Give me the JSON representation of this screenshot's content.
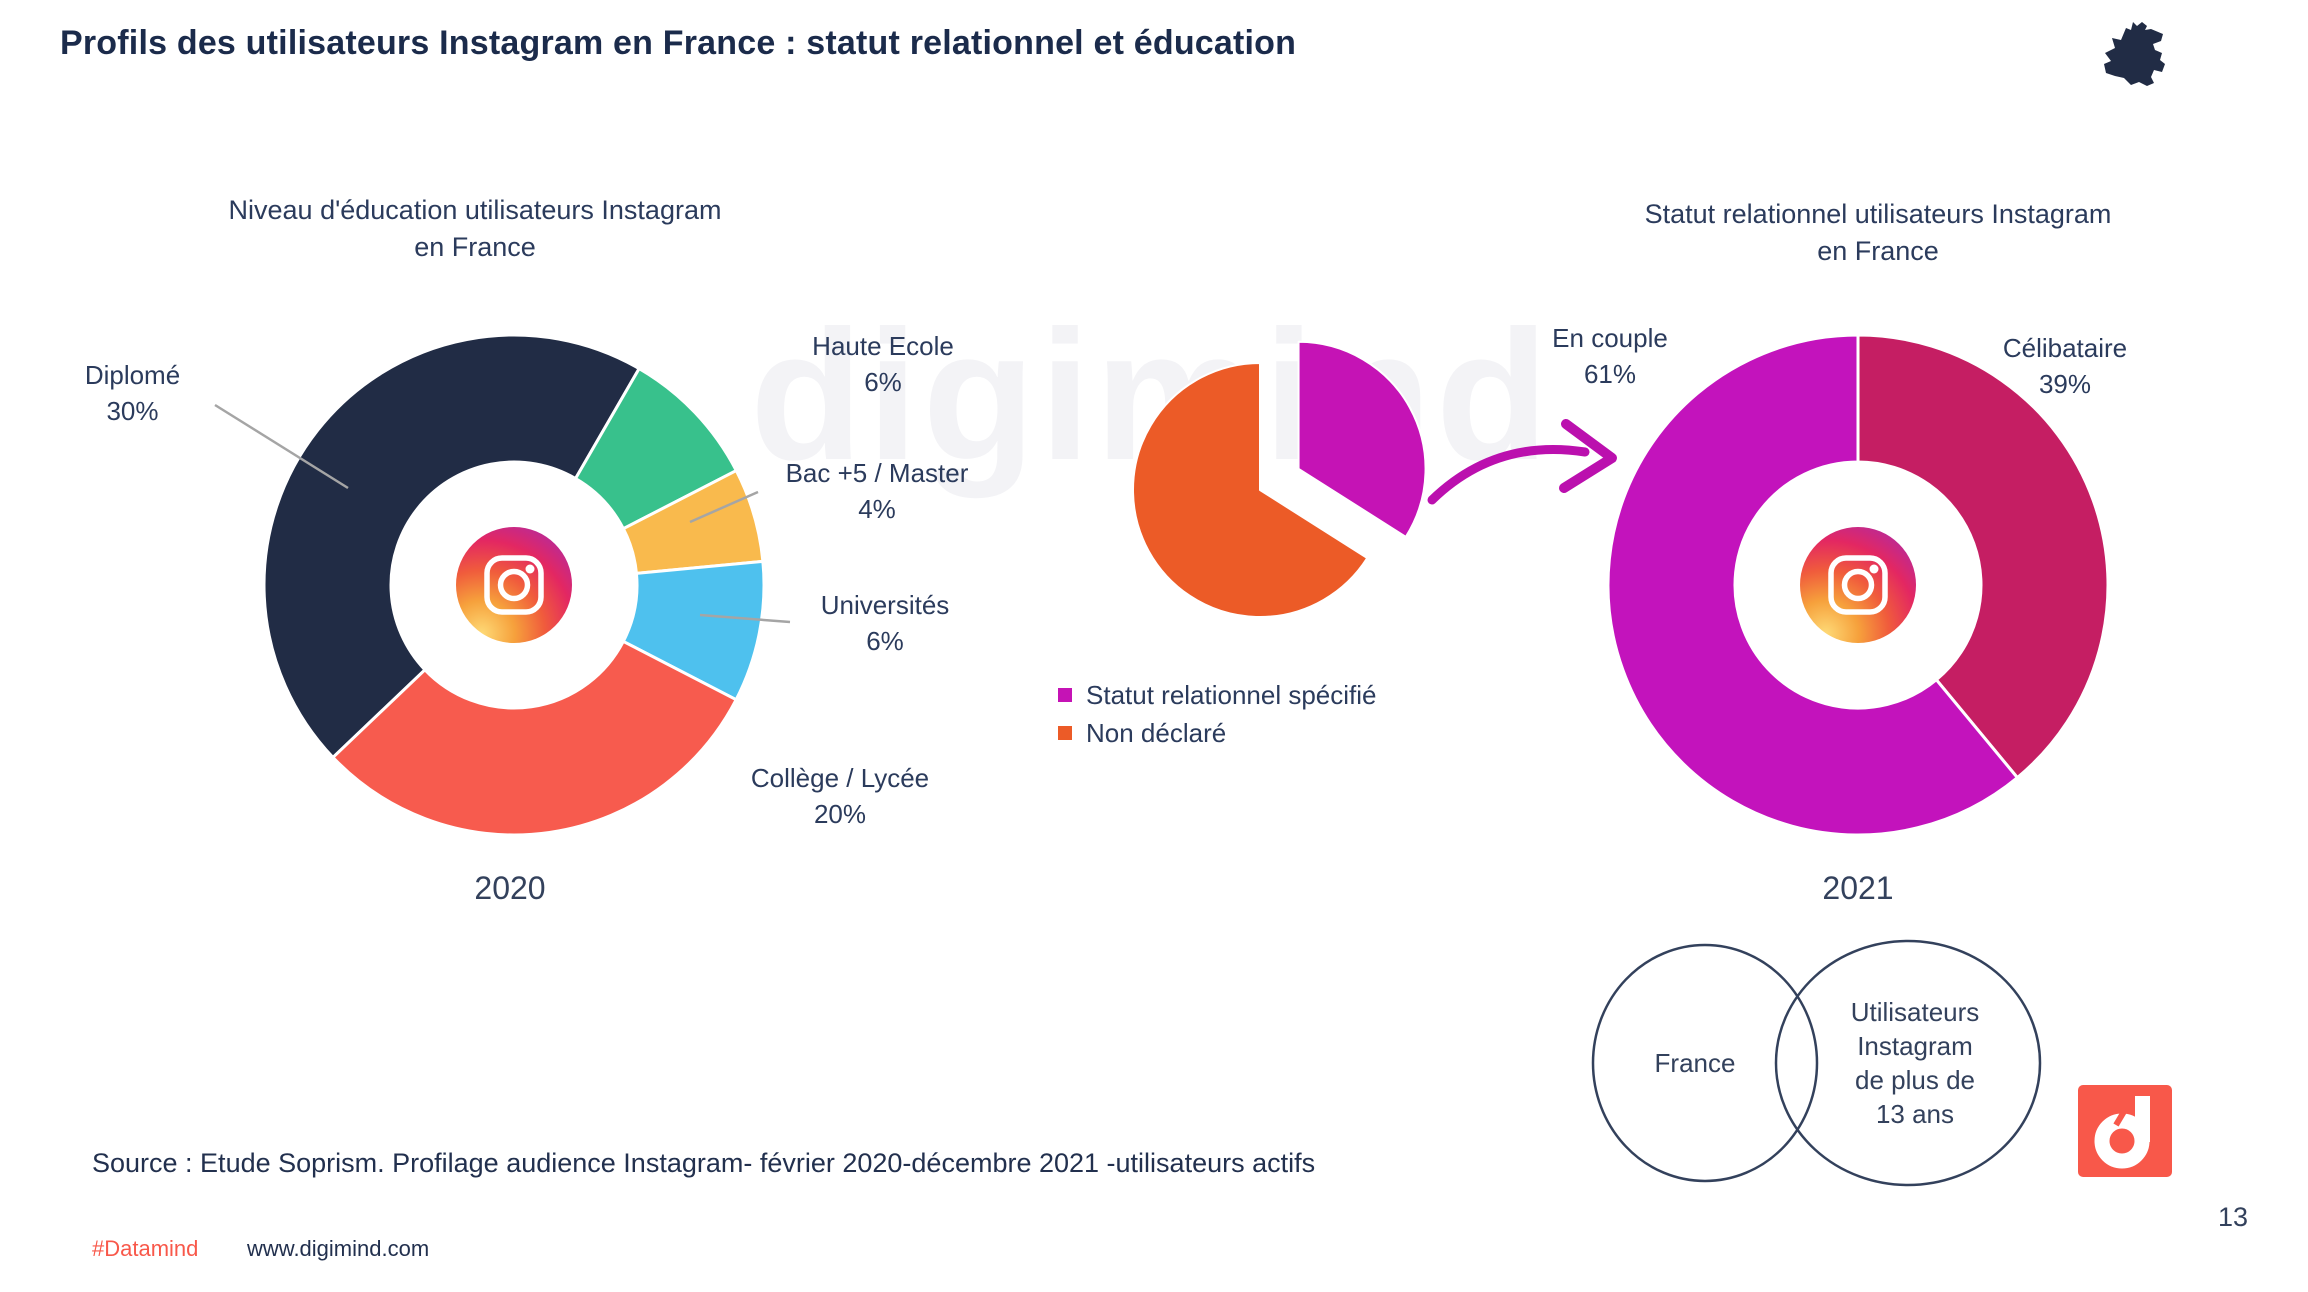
{
  "page": {
    "title": "Profils des utilisateurs Instagram en France : statut relationnel et éducation",
    "watermark": "digimind",
    "source": "Source : Etude Soprism. Profilage audience Instagram- février 2020-décembre 2021 -utilisateurs actifs",
    "footer": {
      "hashtag": "#Datamind",
      "website": "www.digimind.com"
    },
    "page_number": "13"
  },
  "colors": {
    "navy": "#212C45",
    "text_navy": "#2B3B5C",
    "green": "#38C18C",
    "yellow": "#F9BA4D",
    "blue": "#4EC1EE",
    "coral": "#F75B4E",
    "orange": "#EC5B27",
    "magenta": "#C513B5",
    "crimson": "#C51E63",
    "magenta_2021": "#C313BC",
    "arrow_magenta": "#BB10AE",
    "logo_coral": "#F8584A"
  },
  "chart_data": [
    {
      "type": "pie",
      "variant": "donut",
      "name": "education-2020",
      "title": "Niveau d'éducation  utilisateurs Instagram en France",
      "title_lines": [
        "Niveau d'éducation  utilisateurs Instagram",
        "en France"
      ],
      "year_label": "2020",
      "rotation_deg": -133.6,
      "inner_ratio": 0.49,
      "center_icon": "instagram-logo",
      "slices": [
        {
          "label": "Diplomé",
          "value": 30,
          "pct": "30%",
          "color": "#212C45"
        },
        {
          "label": "Haute Ecole",
          "value": 6,
          "pct": "6%",
          "color": "#38C18C"
        },
        {
          "label": "Bac +5 / Master",
          "value": 4,
          "pct": "4%",
          "color": "#F9BA4D"
        },
        {
          "label": "Universités",
          "value": 6,
          "pct": "6%",
          "color": "#4EC1EE"
        },
        {
          "label": "Collège / Lycée",
          "value": 20,
          "pct": "20%",
          "color": "#F75B4E"
        }
      ]
    },
    {
      "type": "pie",
      "variant": "exploded-pie",
      "name": "statut-relationnel-declare",
      "rotation_deg": 0,
      "estimated_values": true,
      "legend_position": "bottom-left",
      "slices": [
        {
          "label": "Statut relationnel spécifié",
          "value": 34,
          "color": "#C513B5",
          "exploded": true
        },
        {
          "label": "Non déclaré",
          "value": 66,
          "color": "#EC5B27"
        }
      ]
    },
    {
      "type": "pie",
      "variant": "donut",
      "name": "relationship-2021",
      "title": "Statut relationnel utilisateurs Instagram en France",
      "title_lines": [
        "Statut relationnel utilisateurs Instagram",
        "en France"
      ],
      "year_label": "2021",
      "rotation_deg": 0,
      "inner_ratio": 0.49,
      "center_icon": "instagram-logo",
      "slices": [
        {
          "label": "Célibataire",
          "value": 39,
          "pct": "39%",
          "color": "#C51E63"
        },
        {
          "label": "En couple",
          "value": 61,
          "pct": "61%",
          "color": "#C313BC"
        }
      ]
    }
  ],
  "venn": {
    "left_label": "France",
    "right_label": "Utilisateurs Instagram de plus de 13 ans",
    "right_lines": [
      "Utilisateurs",
      "Instagram",
      "de plus de",
      "13 ans"
    ]
  }
}
